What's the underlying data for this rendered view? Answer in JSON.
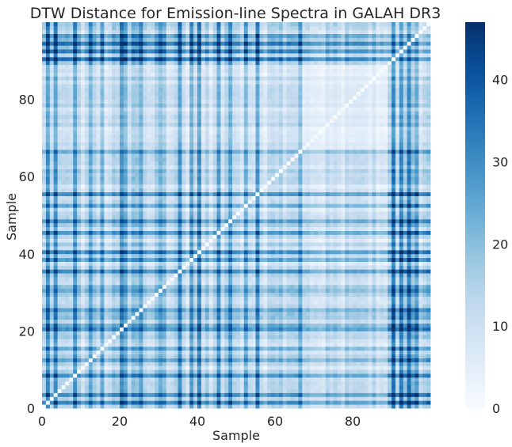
{
  "chart_data": {
    "type": "heatmap",
    "title": "DTW Distance for Emission-line Spectra in GALAH DR3",
    "xlabel": "Sample",
    "ylabel": "Sample",
    "n": 100,
    "xlim": [
      0,
      100
    ],
    "ylim": [
      0,
      100
    ],
    "x_ticks": [
      0,
      20,
      40,
      60,
      80
    ],
    "y_ticks": [
      0,
      20,
      40,
      60,
      80
    ],
    "colorbar": {
      "min": 0,
      "max": 47,
      "ticks": [
        0,
        10,
        20,
        30,
        40
      ],
      "colormap": "Blues",
      "colors": [
        "#f7fbff",
        "#deebf7",
        "#c6dbef",
        "#9ecae1",
        "#6baed6",
        "#4292c6",
        "#2171b5",
        "#08519c",
        "#08306b"
      ]
    },
    "grid": false,
    "diagonal_value": 0,
    "high_distance_samples": [
      1,
      3,
      8,
      12,
      15,
      20,
      21,
      25,
      30,
      35,
      38,
      40,
      45,
      48,
      52,
      55,
      66,
      90,
      92,
      94,
      96
    ],
    "cluster_blocks": [
      {
        "range": [
          0,
          66
        ],
        "within_mean": 9
      },
      {
        "range": [
          67,
          88
        ],
        "within_mean": 4
      },
      {
        "range": [
          89,
          99
        ],
        "within_mean": 6
      }
    ],
    "note_values": "symmetric 100x100 DTW distance matrix, values 0-47"
  }
}
